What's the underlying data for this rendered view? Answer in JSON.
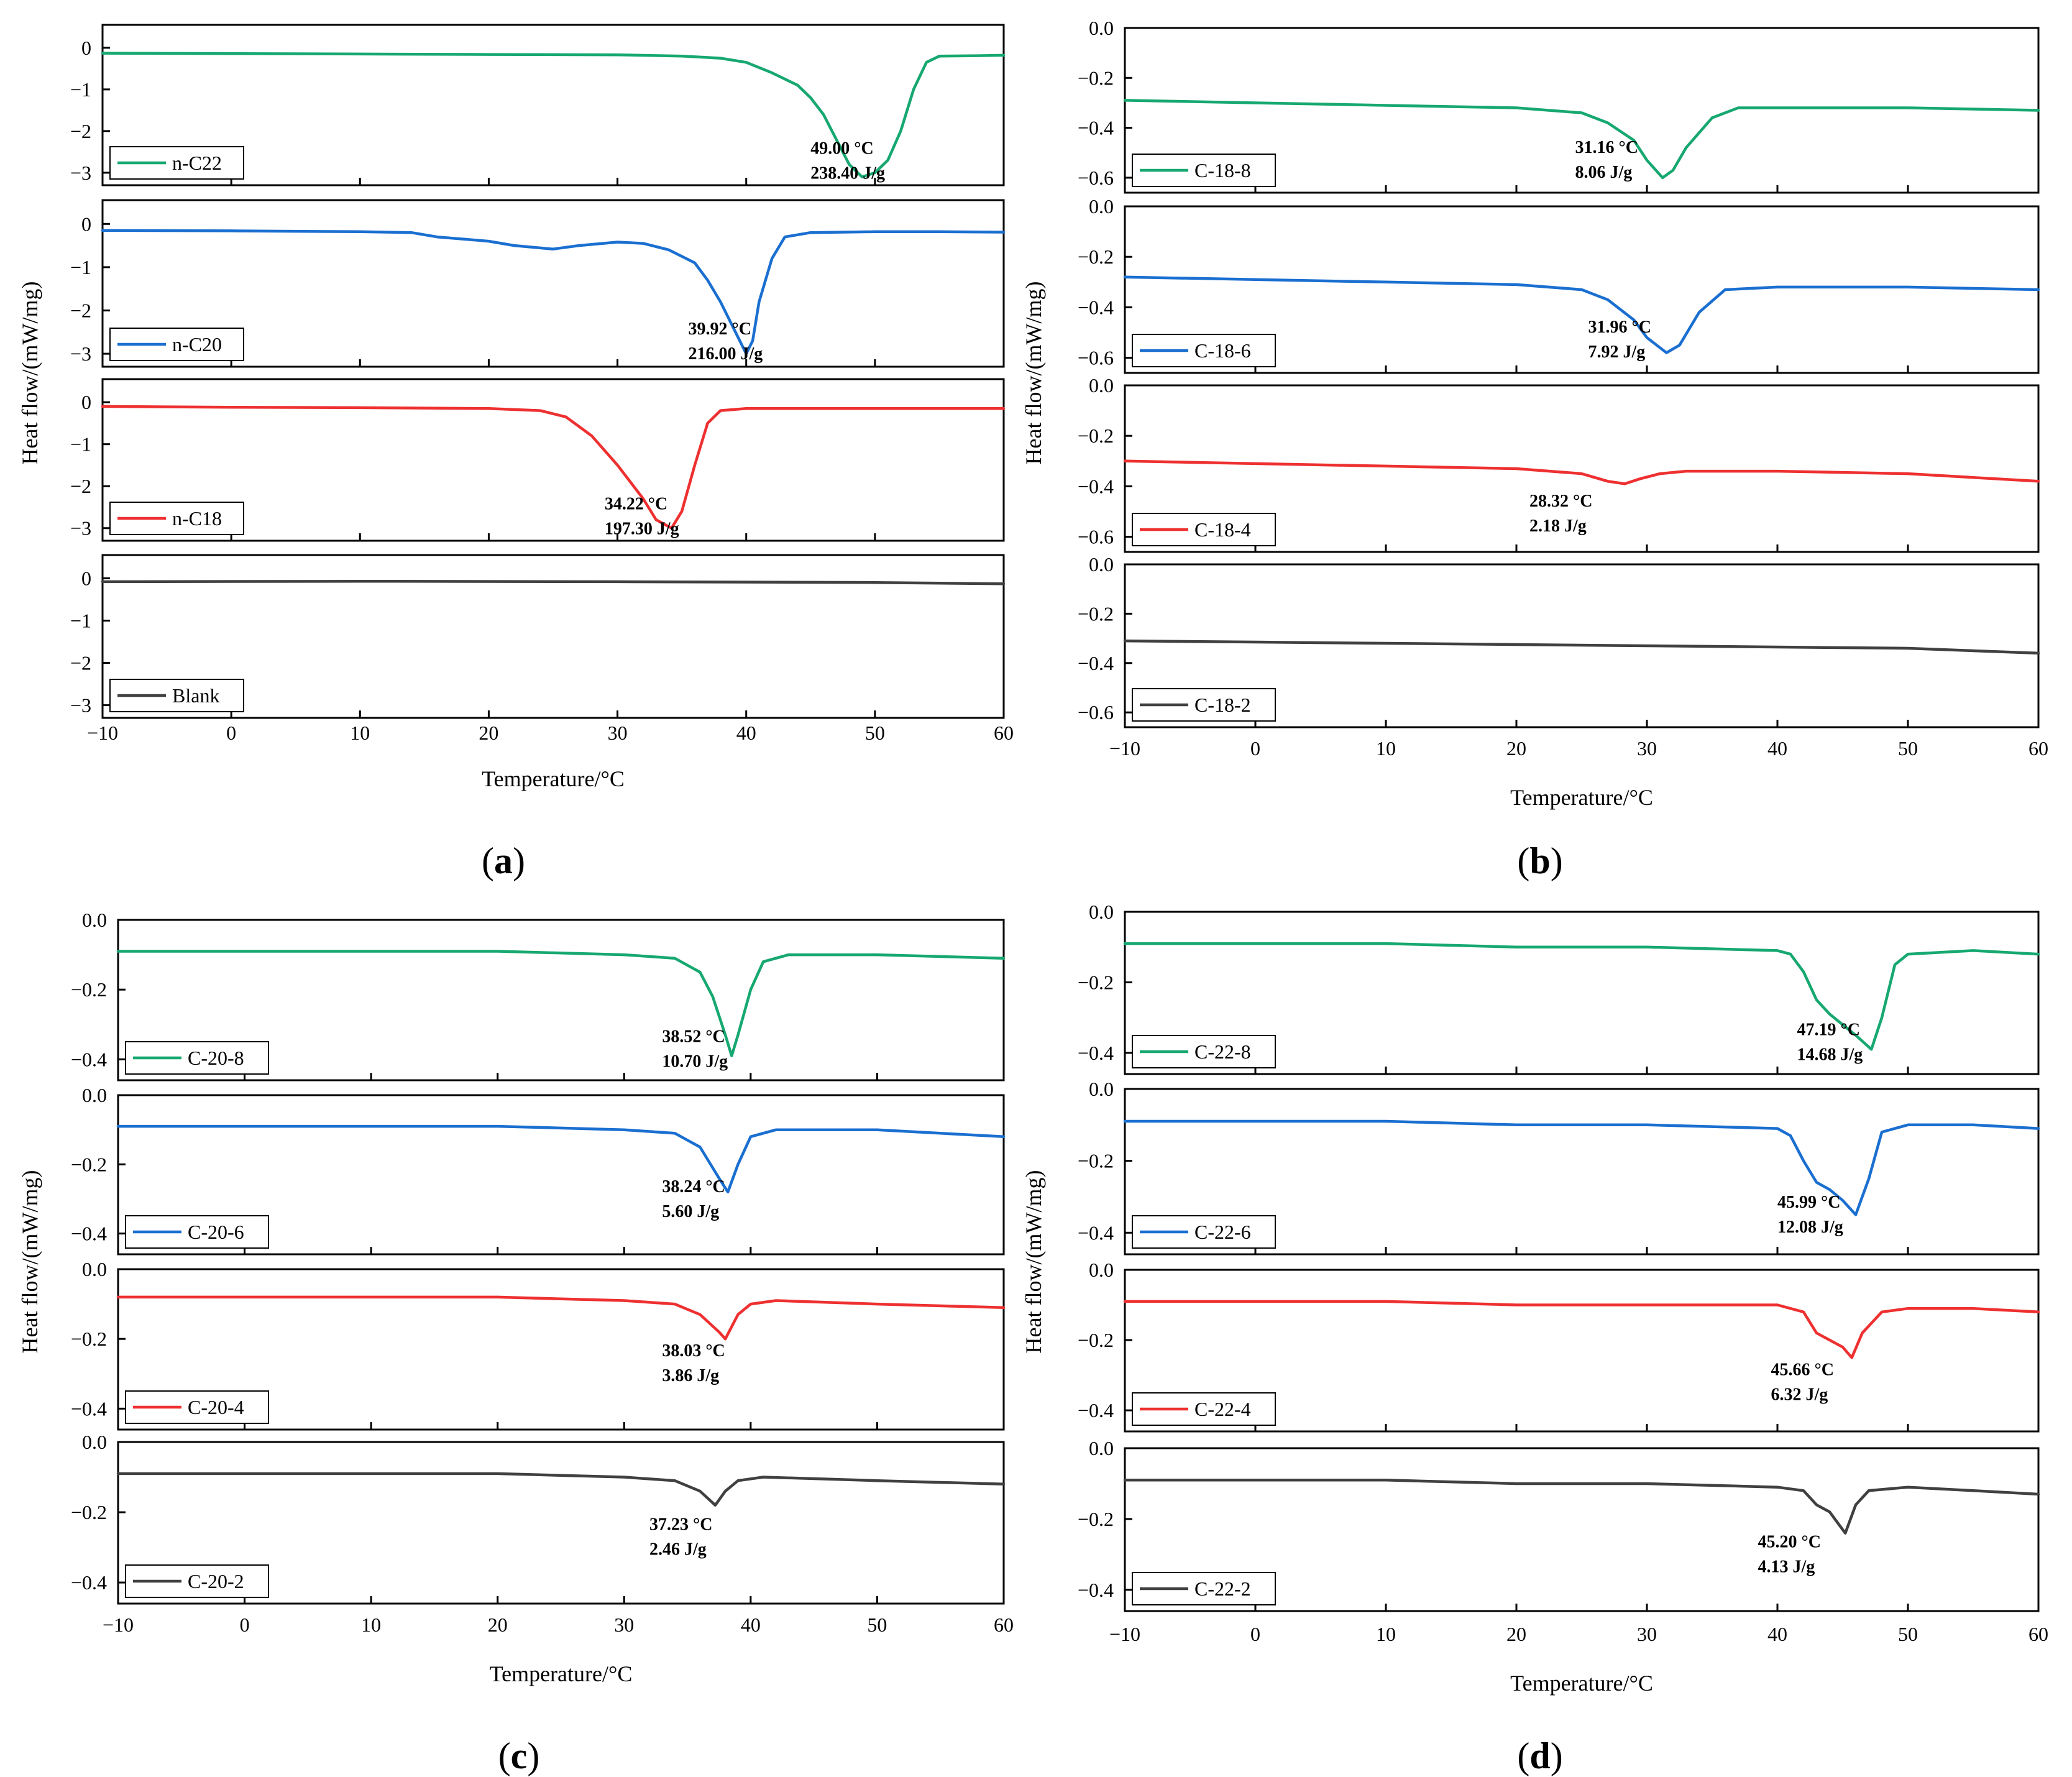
{
  "chart_data": [
    {
      "type": "line",
      "panel": "a",
      "panel_label": "a",
      "xlabel": "Temperature/°C",
      "ylabel": "Heat flow/(mW/mg)",
      "xlim": [
        -10,
        60
      ],
      "x_ticks": [
        -10,
        0,
        10,
        20,
        30,
        40,
        50,
        60
      ],
      "x_tick_labels": [
        "−10",
        "0",
        "10",
        "20",
        "30",
        "40",
        "50",
        "60"
      ],
      "subplots": [
        {
          "name": "n-C22",
          "color": "#16a870",
          "ylim": [
            -3.3,
            0.55
          ],
          "y_ticks": [
            0,
            -1,
            -2,
            -3
          ],
          "y_tick_labels": [
            "0",
            "−1",
            "−2",
            "−3"
          ],
          "annotation": [
            "49.00 °C",
            "238.40 J/g"
          ],
          "annotation_xy": [
            45,
            -2.55
          ],
          "x": [
            -10,
            0,
            10,
            20,
            30,
            35,
            38,
            40,
            42,
            44,
            45,
            46,
            47,
            48,
            49,
            50,
            51,
            52,
            53,
            54,
            55,
            58,
            60
          ],
          "y": [
            -0.13,
            -0.14,
            -0.15,
            -0.16,
            -0.17,
            -0.2,
            -0.25,
            -0.35,
            -0.6,
            -0.9,
            -1.2,
            -1.6,
            -2.2,
            -2.8,
            -3.1,
            -3.0,
            -2.7,
            -2.0,
            -1.0,
            -0.35,
            -0.2,
            -0.19,
            -0.18
          ]
        },
        {
          "name": "n-C20",
          "color": "#1a6fd0",
          "ylim": [
            -3.3,
            0.55
          ],
          "y_ticks": [
            0,
            -1,
            -2,
            -3
          ],
          "y_tick_labels": [
            "0",
            "−1",
            "−2",
            "−3"
          ],
          "annotation": [
            "39.92 °C",
            "216.00 J/g"
          ],
          "annotation_xy": [
            35.5,
            -2.55
          ],
          "x": [
            -10,
            0,
            10,
            14,
            16,
            18,
            20,
            22,
            25,
            27,
            30,
            32,
            34,
            36,
            37,
            38,
            39,
            40,
            40.5,
            41,
            42,
            43,
            45,
            50,
            55,
            60
          ],
          "y": [
            -0.15,
            -0.16,
            -0.18,
            -0.2,
            -0.3,
            -0.35,
            -0.4,
            -0.5,
            -0.58,
            -0.5,
            -0.42,
            -0.45,
            -0.6,
            -0.9,
            -1.3,
            -1.8,
            -2.4,
            -3.0,
            -2.7,
            -1.8,
            -0.8,
            -0.3,
            -0.2,
            -0.18,
            -0.18,
            -0.19
          ]
        },
        {
          "name": "n-C18",
          "color": "#ee3030",
          "ylim": [
            -3.3,
            0.55
          ],
          "y_ticks": [
            0,
            -1,
            -2,
            -3
          ],
          "y_tick_labels": [
            "0",
            "−1",
            "−2",
            "−3"
          ],
          "annotation": [
            "34.22 °C",
            "197.30 J/g"
          ],
          "annotation_xy": [
            29,
            -2.55
          ],
          "x": [
            -10,
            0,
            10,
            20,
            24,
            26,
            28,
            30,
            32,
            33,
            34.2,
            35,
            36,
            37,
            38,
            40,
            50,
            60
          ],
          "y": [
            -0.1,
            -0.12,
            -0.13,
            -0.15,
            -0.2,
            -0.35,
            -0.8,
            -1.5,
            -2.3,
            -2.8,
            -3.0,
            -2.6,
            -1.5,
            -0.5,
            -0.2,
            -0.15,
            -0.15,
            -0.15
          ]
        },
        {
          "name": "Blank",
          "color": "#404040",
          "ylim": [
            -3.3,
            0.55
          ],
          "y_ticks": [
            0,
            -1,
            -2,
            -3
          ],
          "y_tick_labels": [
            "0",
            "−1",
            "−2",
            "−3"
          ],
          "annotation": [],
          "annotation_xy": [
            0,
            0
          ],
          "x": [
            -10,
            10,
            30,
            50,
            60
          ],
          "y": [
            -0.08,
            -0.07,
            -0.08,
            -0.1,
            -0.13
          ]
        }
      ]
    },
    {
      "type": "line",
      "panel": "b",
      "panel_label": "b",
      "xlabel": "Temperature/°C",
      "ylabel": "Heat flow/(mW/mg)",
      "xlim": [
        -10,
        60
      ],
      "x_ticks": [
        -10,
        0,
        10,
        20,
        30,
        40,
        50,
        60
      ],
      "x_tick_labels": [
        "−10",
        "0",
        "10",
        "20",
        "30",
        "40",
        "50",
        "60"
      ],
      "subplots": [
        {
          "name": "C-18-8",
          "color": "#16a870",
          "ylim": [
            -0.66,
            0.0
          ],
          "y_ticks": [
            0.0,
            -0.2,
            -0.4,
            -0.6
          ],
          "y_tick_labels": [
            "0.0",
            "−0.2",
            "−0.4",
            "−0.6"
          ],
          "annotation": [
            "31.16 °C",
            "8.06 J/g"
          ],
          "annotation_xy": [
            24.5,
            -0.5
          ],
          "x": [
            -10,
            0,
            10,
            20,
            25,
            27,
            29,
            30,
            31.2,
            32,
            33,
            35,
            37,
            40,
            50,
            60
          ],
          "y": [
            -0.29,
            -0.3,
            -0.31,
            -0.32,
            -0.34,
            -0.38,
            -0.45,
            -0.53,
            -0.6,
            -0.57,
            -0.48,
            -0.36,
            -0.32,
            -0.32,
            -0.32,
            -0.33
          ]
        },
        {
          "name": "C-18-6",
          "color": "#1a6fd0",
          "ylim": [
            -0.66,
            0.0
          ],
          "y_ticks": [
            0.0,
            -0.2,
            -0.4,
            -0.6
          ],
          "y_tick_labels": [
            "0.0",
            "−0.2",
            "−0.4",
            "−0.6"
          ],
          "annotation": [
            "31.96 °C",
            "7.92 J/g"
          ],
          "annotation_xy": [
            25.5,
            -0.5
          ],
          "x": [
            -10,
            0,
            10,
            20,
            25,
            27,
            29,
            30,
            31.5,
            32.5,
            34,
            36,
            40,
            50,
            60
          ],
          "y": [
            -0.28,
            -0.29,
            -0.3,
            -0.31,
            -0.33,
            -0.37,
            -0.45,
            -0.52,
            -0.58,
            -0.55,
            -0.42,
            -0.33,
            -0.32,
            -0.32,
            -0.33
          ]
        },
        {
          "name": "C-18-4",
          "color": "#ee3030",
          "ylim": [
            -0.66,
            0.0
          ],
          "y_ticks": [
            0.0,
            -0.2,
            -0.4,
            -0.6
          ],
          "y_tick_labels": [
            "0.0",
            "−0.2",
            "−0.4",
            "−0.6"
          ],
          "annotation": [
            "28.32 °C",
            "2.18 J/g"
          ],
          "annotation_xy": [
            21,
            -0.48
          ],
          "x": [
            -10,
            0,
            10,
            20,
            25,
            27,
            28.3,
            29.5,
            31,
            33,
            40,
            50,
            60
          ],
          "y": [
            -0.3,
            -0.31,
            -0.32,
            -0.33,
            -0.35,
            -0.38,
            -0.39,
            -0.37,
            -0.35,
            -0.34,
            -0.34,
            -0.35,
            -0.38
          ]
        },
        {
          "name": "C-18-2",
          "color": "#404040",
          "ylim": [
            -0.66,
            0.0
          ],
          "y_ticks": [
            0.0,
            -0.2,
            -0.4,
            -0.6
          ],
          "y_tick_labels": [
            "0.0",
            "−0.2",
            "−0.4",
            "−0.6"
          ],
          "annotation": [],
          "annotation_xy": [
            0,
            0
          ],
          "x": [
            -10,
            10,
            30,
            50,
            60
          ],
          "y": [
            -0.31,
            -0.32,
            -0.33,
            -0.34,
            -0.36
          ]
        }
      ]
    },
    {
      "type": "line",
      "panel": "c",
      "panel_label": "c",
      "xlabel": "Temperature/°C",
      "ylabel": "Heat flow/(mW/mg)",
      "xlim": [
        -10,
        60
      ],
      "x_ticks": [
        -10,
        0,
        10,
        20,
        30,
        40,
        50,
        60
      ],
      "x_tick_labels": [
        "−10",
        "0",
        "10",
        "20",
        "30",
        "40",
        "50",
        "60"
      ],
      "subplots": [
        {
          "name": "C-20-8",
          "color": "#16a870",
          "ylim": [
            -0.46,
            0.0
          ],
          "y_ticks": [
            0.0,
            -0.2,
            -0.4
          ],
          "y_tick_labels": [
            "0.0",
            "−0.2",
            "−0.4"
          ],
          "annotation": [
            "38.52 °C",
            "10.70 J/g"
          ],
          "annotation_xy": [
            33,
            -0.35
          ],
          "x": [
            -10,
            0,
            10,
            20,
            30,
            34,
            36,
            37,
            38,
            38.5,
            39,
            40,
            41,
            43,
            50,
            60
          ],
          "y": [
            -0.09,
            -0.09,
            -0.09,
            -0.09,
            -0.1,
            -0.11,
            -0.15,
            -0.22,
            -0.33,
            -0.39,
            -0.33,
            -0.2,
            -0.12,
            -0.1,
            -0.1,
            -0.11
          ]
        },
        {
          "name": "C-20-6",
          "color": "#1a6fd0",
          "ylim": [
            -0.46,
            0.0
          ],
          "y_ticks": [
            0.0,
            -0.2,
            -0.4
          ],
          "y_tick_labels": [
            "0.0",
            "−0.2",
            "−0.4"
          ],
          "annotation": [
            "38.24 °C",
            "5.60 J/g"
          ],
          "annotation_xy": [
            33,
            -0.28
          ],
          "x": [
            -10,
            0,
            10,
            20,
            30,
            34,
            36,
            37.5,
            38.2,
            39,
            40,
            42,
            50,
            60
          ],
          "y": [
            -0.09,
            -0.09,
            -0.09,
            -0.09,
            -0.1,
            -0.11,
            -0.15,
            -0.24,
            -0.28,
            -0.2,
            -0.12,
            -0.1,
            -0.1,
            -0.12
          ]
        },
        {
          "name": "C-20-4",
          "color": "#ee3030",
          "ylim": [
            -0.46,
            0.0
          ],
          "y_ticks": [
            0.0,
            -0.2,
            -0.4
          ],
          "y_tick_labels": [
            "0.0",
            "−0.2",
            "−0.4"
          ],
          "annotation": [
            "38.03 °C",
            "3.86 J/g"
          ],
          "annotation_xy": [
            33,
            -0.25
          ],
          "x": [
            -10,
            0,
            10,
            20,
            30,
            34,
            36,
            37.5,
            38,
            39,
            40,
            42,
            50,
            60
          ],
          "y": [
            -0.08,
            -0.08,
            -0.08,
            -0.08,
            -0.09,
            -0.1,
            -0.13,
            -0.18,
            -0.2,
            -0.13,
            -0.1,
            -0.09,
            -0.1,
            -0.11
          ]
        },
        {
          "name": "C-20-2",
          "color": "#404040",
          "ylim": [
            -0.46,
            0.0
          ],
          "y_ticks": [
            0.0,
            -0.2,
            -0.4
          ],
          "y_tick_labels": [
            "0.0",
            "−0.2",
            "−0.4"
          ],
          "annotation": [
            "37.23 °C",
            "2.46 J/g"
          ],
          "annotation_xy": [
            32,
            -0.25
          ],
          "x": [
            -10,
            0,
            10,
            20,
            30,
            34,
            36,
            37.2,
            38,
            39,
            41,
            50,
            60
          ],
          "y": [
            -0.09,
            -0.09,
            -0.09,
            -0.09,
            -0.1,
            -0.11,
            -0.14,
            -0.18,
            -0.14,
            -0.11,
            -0.1,
            -0.11,
            -0.12
          ]
        }
      ]
    },
    {
      "type": "line",
      "panel": "d",
      "panel_label": "d",
      "xlabel": "Temperature/°C",
      "ylabel": "Heat flow/(mW/mg)",
      "xlim": [
        -10,
        60
      ],
      "x_ticks": [
        -10,
        0,
        10,
        20,
        30,
        40,
        50,
        60
      ],
      "x_tick_labels": [
        "−10",
        "0",
        "10",
        "20",
        "30",
        "40",
        "50",
        "60"
      ],
      "subplots": [
        {
          "name": "C-22-8",
          "color": "#16a870",
          "ylim": [
            -0.46,
            0.0
          ],
          "y_ticks": [
            0.0,
            -0.2,
            -0.4
          ],
          "y_tick_labels": [
            "0.0",
            "−0.2",
            "−0.4"
          ],
          "annotation": [
            "47.19 °C",
            "14.68 J/g"
          ],
          "annotation_xy": [
            41.5,
            -0.35
          ],
          "x": [
            -10,
            0,
            10,
            20,
            30,
            40,
            41,
            42,
            43,
            44,
            45,
            46,
            47.2,
            48,
            49,
            50,
            55,
            60
          ],
          "y": [
            -0.09,
            -0.09,
            -0.09,
            -0.1,
            -0.1,
            -0.11,
            -0.12,
            -0.17,
            -0.25,
            -0.29,
            -0.32,
            -0.35,
            -0.39,
            -0.3,
            -0.15,
            -0.12,
            -0.11,
            -0.12
          ]
        },
        {
          "name": "C-22-6",
          "color": "#1a6fd0",
          "ylim": [
            -0.46,
            0.0
          ],
          "y_ticks": [
            0.0,
            -0.2,
            -0.4
          ],
          "y_tick_labels": [
            "0.0",
            "−0.2",
            "−0.4"
          ],
          "annotation": [
            "45.99 °C",
            "12.08 J/g"
          ],
          "annotation_xy": [
            40,
            -0.33
          ],
          "x": [
            -10,
            0,
            10,
            20,
            30,
            40,
            41,
            42,
            43,
            44,
            45,
            46,
            47,
            48,
            50,
            55,
            60
          ],
          "y": [
            -0.09,
            -0.09,
            -0.09,
            -0.1,
            -0.1,
            -0.11,
            -0.13,
            -0.2,
            -0.26,
            -0.28,
            -0.31,
            -0.35,
            -0.25,
            -0.12,
            -0.1,
            -0.1,
            -0.11
          ]
        },
        {
          "name": "C-22-4",
          "color": "#ee3030",
          "ylim": [
            -0.46,
            0.0
          ],
          "y_ticks": [
            0.0,
            -0.2,
            -0.4
          ],
          "y_tick_labels": [
            "0.0",
            "−0.2",
            "−0.4"
          ],
          "annotation": [
            "45.66 °C",
            "6.32 J/g"
          ],
          "annotation_xy": [
            39.5,
            -0.3
          ],
          "x": [
            -10,
            0,
            10,
            20,
            30,
            40,
            42,
            43,
            44,
            45,
            45.7,
            46.5,
            48,
            50,
            55,
            60
          ],
          "y": [
            -0.09,
            -0.09,
            -0.09,
            -0.1,
            -0.1,
            -0.1,
            -0.12,
            -0.18,
            -0.2,
            -0.22,
            -0.25,
            -0.18,
            -0.12,
            -0.11,
            -0.11,
            -0.12
          ]
        },
        {
          "name": "C-22-2",
          "color": "#404040",
          "ylim": [
            -0.46,
            0.0
          ],
          "y_ticks": [
            0.0,
            -0.2,
            -0.4
          ],
          "y_tick_labels": [
            "0.0",
            "−0.2",
            "−0.4"
          ],
          "annotation": [
            "45.20 °C",
            "4.13 J/g"
          ],
          "annotation_xy": [
            38.5,
            -0.28
          ],
          "x": [
            -10,
            0,
            10,
            20,
            30,
            40,
            42,
            43,
            44,
            45.2,
            46,
            47,
            50,
            55,
            60
          ],
          "y": [
            -0.09,
            -0.09,
            -0.09,
            -0.1,
            -0.1,
            -0.11,
            -0.12,
            -0.16,
            -0.18,
            -0.24,
            -0.16,
            -0.12,
            -0.11,
            -0.12,
            -0.13
          ]
        }
      ]
    }
  ]
}
